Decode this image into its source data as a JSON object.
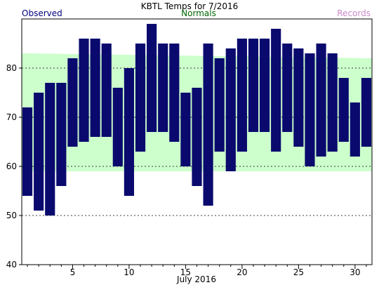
{
  "chart_data": {
    "type": "bar",
    "title": "KBTL Temps for 7/2016",
    "xlabel": "July 2016",
    "legend": {
      "observed": "Observed",
      "normals": "Normals",
      "records": "Records"
    },
    "colors": {
      "observed": "#0a0a6e",
      "normals": "#ccffcc",
      "observed_text": "#000080",
      "normals_text": "#006400",
      "records_text": "#cc88cc",
      "grid": "#000000"
    },
    "ylim": [
      40,
      90
    ],
    "yticks": [
      40,
      50,
      60,
      70,
      80
    ],
    "xlim": [
      0.5,
      31.5
    ],
    "xticks": [
      5,
      10,
      15,
      20,
      25,
      30
    ],
    "normals": {
      "x": [
        1,
        31
      ],
      "low": [
        59,
        59
      ],
      "high": [
        83,
        82
      ]
    },
    "series": [
      {
        "name": "Observed",
        "x": [
          1,
          2,
          3,
          4,
          5,
          6,
          7,
          8,
          9,
          10,
          11,
          12,
          13,
          14,
          15,
          16,
          17,
          18,
          19,
          20,
          21,
          22,
          23,
          24,
          25,
          26,
          27,
          28,
          29,
          30,
          31
        ],
        "high": [
          72,
          75,
          77,
          77,
          82,
          86,
          86,
          85,
          76,
          80,
          85,
          89,
          85,
          85,
          75,
          76,
          85,
          82,
          84,
          86,
          86,
          86,
          88,
          85,
          84,
          83,
          85,
          83,
          78,
          73,
          78
        ],
        "low": [
          54,
          51,
          50,
          56,
          64,
          65,
          66,
          66,
          60,
          54,
          63,
          67,
          67,
          65,
          60,
          56,
          52,
          63,
          59,
          63,
          67,
          67,
          63,
          67,
          64,
          60,
          62,
          63,
          65,
          62,
          64
        ]
      }
    ]
  }
}
